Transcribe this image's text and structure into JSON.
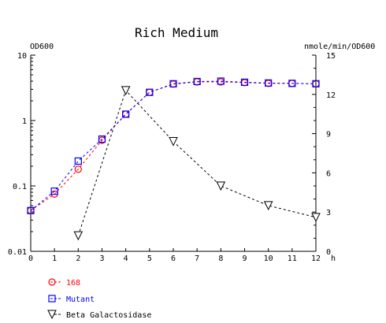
{
  "chart_data": {
    "type": "line",
    "title": "Rich Medium",
    "left_axis_label": "OD600",
    "right_axis_label": "nmole/min/OD600",
    "x_unit_label": "h",
    "x_range": [
      0,
      12
    ],
    "left_scale": "log",
    "left_range": [
      0.01,
      10
    ],
    "right_range": [
      0,
      15
    ],
    "x_ticks": [
      "0",
      "1",
      "2",
      "3",
      "4",
      "5",
      "6",
      "7",
      "8",
      "9",
      "10",
      "11",
      "12"
    ],
    "left_ticks": [
      {
        "value": 10,
        "label": "10"
      },
      {
        "value": 1,
        "label": "1"
      },
      {
        "value": 0.1,
        "label": "0.1"
      },
      {
        "value": 0.01,
        "label": "0.01"
      }
    ],
    "right_ticks": [
      {
        "value": 15,
        "label": "15"
      },
      {
        "value": 12,
        "label": "12"
      },
      {
        "value": 9,
        "label": "9"
      },
      {
        "value": 6,
        "label": "6"
      },
      {
        "value": 3,
        "label": "3"
      },
      {
        "value": 0,
        "label": "0"
      }
    ],
    "grid": false,
    "legend_position": "bottom-left",
    "series": [
      {
        "name": "168",
        "axis": "left",
        "marker": "circle",
        "color": "#ff0000",
        "x": [
          0,
          1,
          2,
          3,
          4,
          5,
          6,
          7,
          8,
          9,
          10,
          11,
          12
        ],
        "y": [
          0.042,
          0.075,
          0.18,
          0.5,
          1.25,
          2.7,
          3.6,
          3.9,
          3.9,
          3.8,
          3.7,
          3.7,
          3.65
        ]
      },
      {
        "name": "Mutant",
        "axis": "left",
        "marker": "square",
        "color": "#0000ff",
        "x": [
          0,
          1,
          2,
          3,
          4,
          5,
          6,
          7,
          8,
          9,
          10,
          11,
          12
        ],
        "y": [
          0.042,
          0.083,
          0.24,
          0.52,
          1.25,
          2.7,
          3.65,
          3.95,
          4.0,
          3.85,
          3.75,
          3.7,
          3.65
        ]
      },
      {
        "name": "Beta Galactosidase",
        "axis": "right",
        "marker": "triangle-down",
        "color": "#000000",
        "x": [
          2,
          4,
          6,
          8,
          10,
          12
        ],
        "y": [
          1.2,
          12.3,
          8.4,
          5.0,
          3.5,
          2.6
        ]
      }
    ]
  }
}
